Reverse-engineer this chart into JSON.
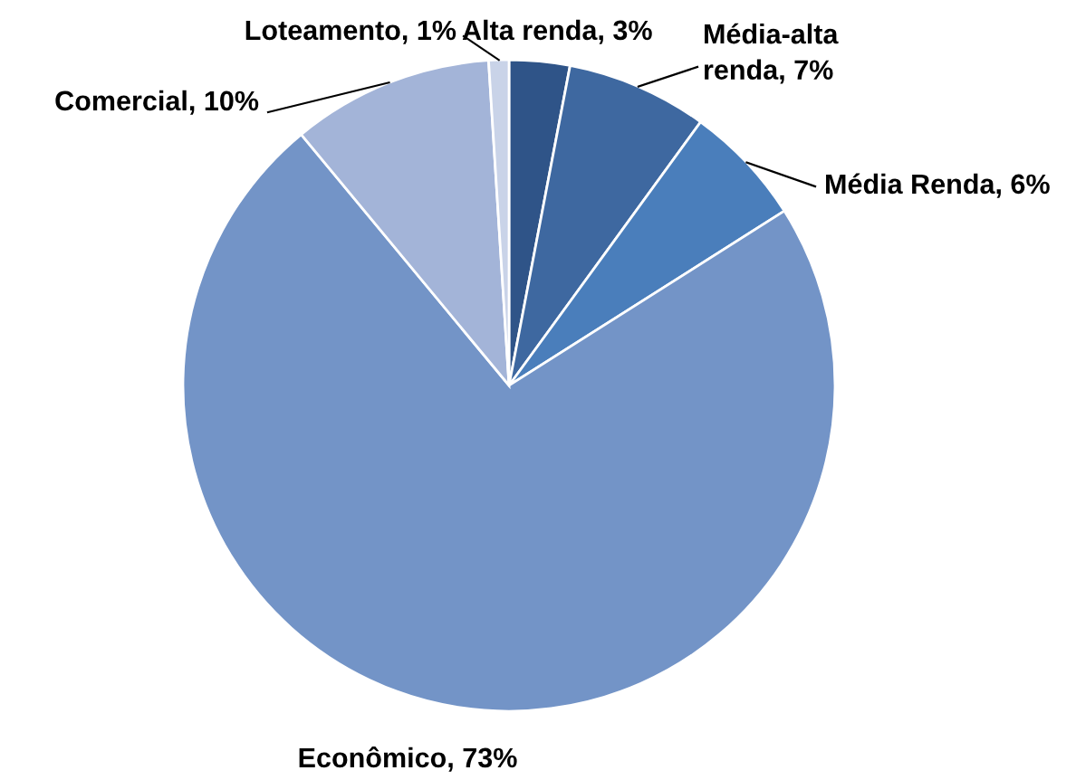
{
  "chart_data": {
    "type": "pie",
    "categories": [
      "Alta renda",
      "Média-alta renda",
      "Média Renda",
      "Econômico",
      "Comercial",
      "Loteamento"
    ],
    "values": [
      3,
      7,
      6,
      73,
      10,
      1
    ],
    "value_labels": [
      "3%",
      "7%",
      "6%",
      "73%",
      "10%",
      "1%"
    ],
    "colors": [
      "#2f5488",
      "#3e68a0",
      "#4a7ebb",
      "#7394c7",
      "#a3b4d8",
      "#c9d3e8"
    ],
    "legend": false
  }
}
